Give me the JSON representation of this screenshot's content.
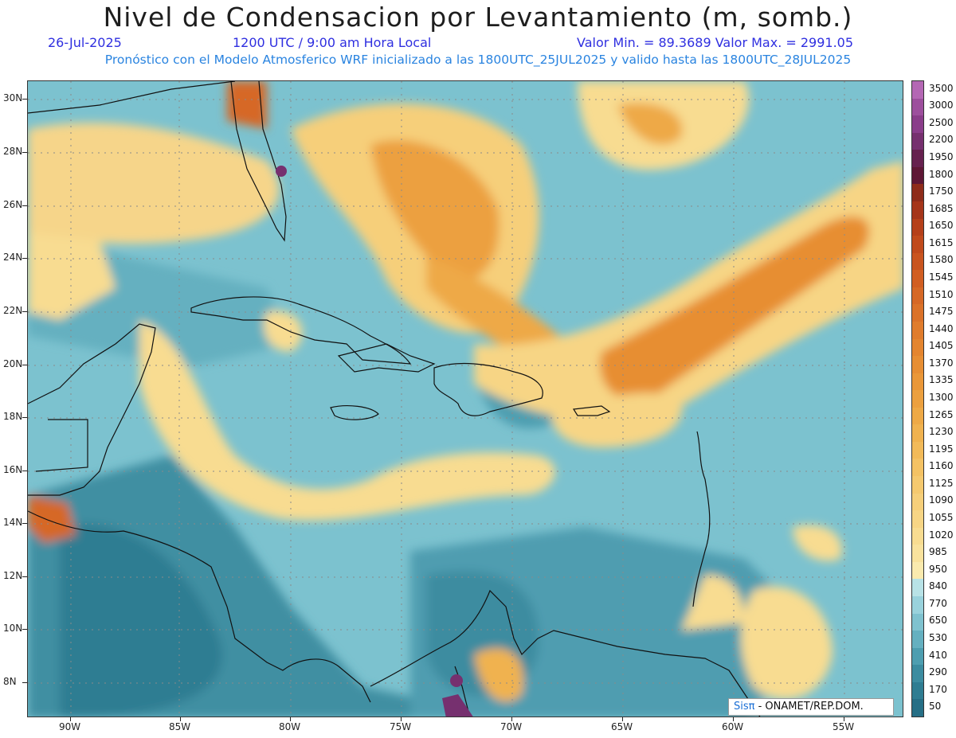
{
  "header": {
    "title": "Nivel de Condensacion por Levantamiento (m, somb.)",
    "date": "26-Jul-2025",
    "time": "1200 UTC / 9:00 am Hora Local",
    "minmax": "Valor Min. = 89.3689  Valor Max. = 2991.05",
    "model_note": "Pronóstico con el Modelo Atmosferico WRF inicializado a las 1800UTC_25JUL2025 y valido hasta las  1800UTC_28JUL2025"
  },
  "axes": {
    "lat_labels": [
      "30N",
      "28N",
      "26N",
      "24N",
      "22N",
      "20N",
      "18N",
      "16N",
      "14N",
      "12N",
      "10N",
      "8N"
    ],
    "lon_labels": [
      "90W",
      "85W",
      "80W",
      "75W",
      "70W",
      "65W",
      "60W",
      "55W"
    ]
  },
  "colorbar": {
    "labels": [
      "3500",
      "3000",
      "2500",
      "2200",
      "1950",
      "1800",
      "1750",
      "1685",
      "1650",
      "1615",
      "1580",
      "1545",
      "1510",
      "1475",
      "1440",
      "1405",
      "1370",
      "1335",
      "1300",
      "1265",
      "1230",
      "1195",
      "1160",
      "1125",
      "1090",
      "1055",
      "1020",
      "985",
      "950",
      "840",
      "770",
      "650",
      "530",
      "410",
      "290",
      "170",
      "50"
    ],
    "colors": [
      "#b467b4",
      "#9d4f9d",
      "#8a3d8a",
      "#76306f",
      "#66214f",
      "#5e1735",
      "#8e2c1a",
      "#a5351a",
      "#b5401a",
      "#c04a1c",
      "#c9541f",
      "#d15e22",
      "#d66826",
      "#db7229",
      "#e07c2c",
      "#e4852f",
      "#e78e33",
      "#ea9738",
      "#eca03f",
      "#eea946",
      "#f0b24f",
      "#f2ba59",
      "#f4c264",
      "#f5c96f",
      "#f6cf7a",
      "#f7d585",
      "#f8dc91",
      "#f9e29d",
      "#faeaae",
      "#b8e2e6",
      "#99d2dc",
      "#7fc2cf",
      "#65b0c0",
      "#4e9eb0",
      "#3c8ca0",
      "#2f7d92",
      "#266f86"
    ]
  },
  "credit": {
    "sis": "Sisπ",
    "text": " - ONAMET/REP.DOM."
  }
}
